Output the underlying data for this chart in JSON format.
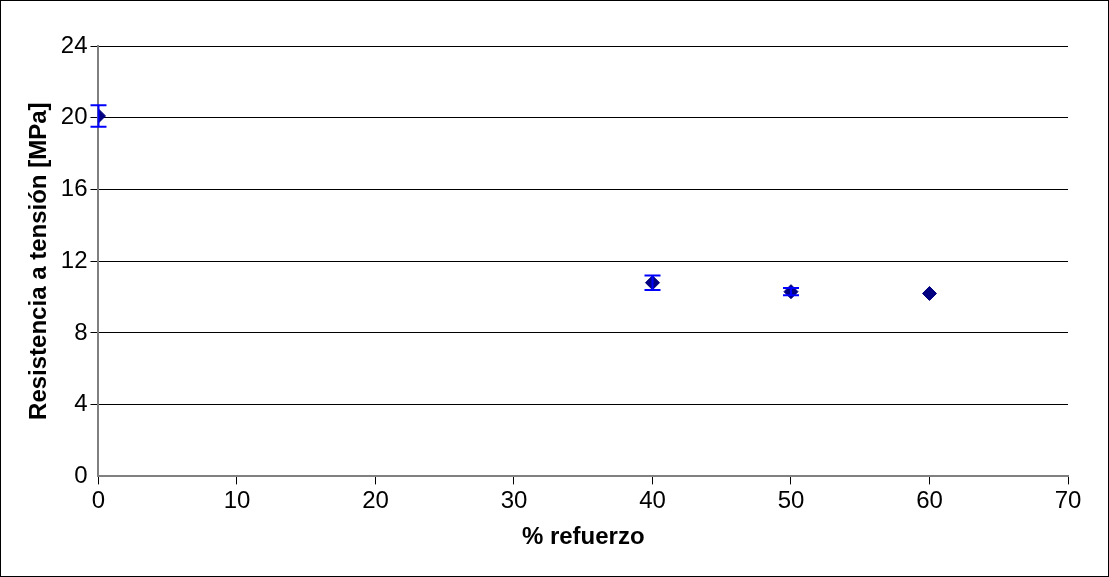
{
  "chart_data": {
    "type": "scatter",
    "xlabel": "% refuerzo",
    "ylabel": "Resistencia a tensión [MPa]",
    "x": [
      0,
      40,
      50,
      60
    ],
    "series": [
      {
        "color": "#000080",
        "values": [
          20.1,
          10.8,
          10.3,
          10.2
        ],
        "errors": [
          0.6,
          0.4,
          0.2,
          null
        ]
      }
    ],
    "xlim": [
      0,
      70
    ],
    "xticks": [
      0,
      10,
      20,
      30,
      40,
      50,
      60,
      70
    ],
    "ylim": [
      0,
      24
    ],
    "yticks": [
      0,
      4,
      8,
      12,
      16,
      20,
      24
    ],
    "grid": "y",
    "marker": "diamond",
    "legend": false
  }
}
